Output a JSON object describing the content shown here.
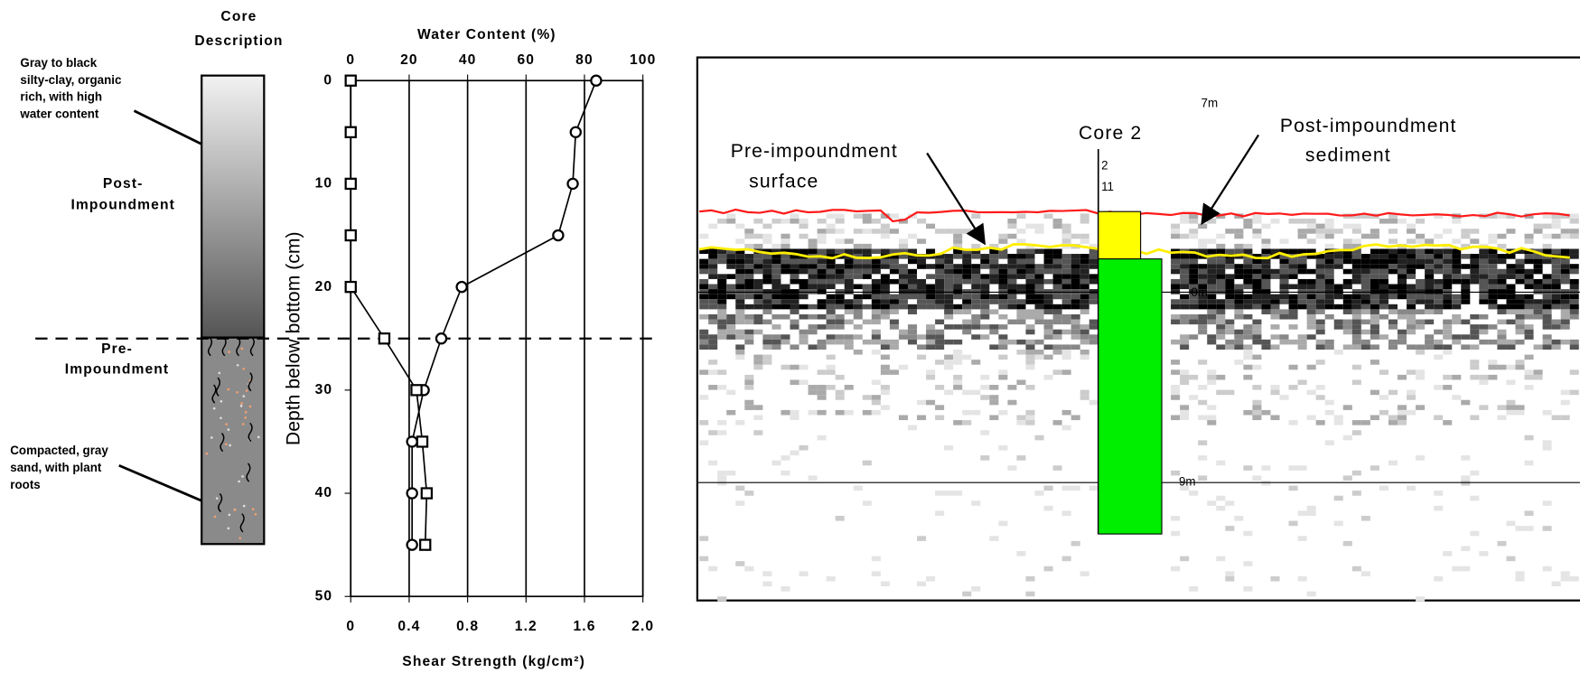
{
  "chart_data": {
    "type": "line",
    "x_label": "Shear Strength (kg/cm²)",
    "x2_label": "Water Content (%)",
    "y_label": "Depth below bottom (cm)",
    "xlim": [
      0,
      2
    ],
    "xticks": [
      0,
      0.4,
      0.8,
      1.2,
      1.6,
      {
        "value": 2,
        "label": "2.0"
      }
    ],
    "x2lim": [
      0,
      100
    ],
    "x2ticks": [
      0,
      20,
      40,
      60,
      80,
      100
    ],
    "ylim": [
      0,
      50
    ],
    "yticks": [
      0,
      10,
      20,
      30,
      40,
      50
    ],
    "y_inverted": true,
    "grid": true,
    "y": [
      0,
      5,
      10,
      15,
      20,
      25,
      30,
      35,
      40,
      45
    ],
    "series": [
      {
        "marker": "circle",
        "axis": "x2",
        "color": "#000000",
        "values": [
          84,
          77,
          76,
          71,
          38,
          31,
          25,
          21,
          21,
          21
        ]
      },
      {
        "marker": "square",
        "axis": "x",
        "color": "#000000",
        "values": [
          0,
          0,
          0,
          0,
          0,
          0.23,
          0.45,
          0.49,
          0.52,
          0.51
        ]
      }
    ]
  },
  "core_description": {
    "title": [
      "Core",
      "Description"
    ],
    "top_note": [
      "Gray to black",
      "silty-clay, organic",
      "rich, with high",
      "water content"
    ],
    "upper_unit": [
      "Post-",
      "Impoundment"
    ],
    "lower_unit": [
      "Pre-",
      "Impoundment"
    ],
    "bottom_note": [
      "Compacted, gray",
      "sand, with plant",
      "roots"
    ]
  },
  "radar_profile": {
    "core_label": "Core 2",
    "left_note": [
      "Pre-impoundment",
      "surface"
    ],
    "right_note": [
      "Post-impoundment",
      "sediment"
    ],
    "depth_labels": [
      "7m",
      "0m",
      "9m"
    ],
    "core_marks": [
      "2",
      "11"
    ]
  }
}
